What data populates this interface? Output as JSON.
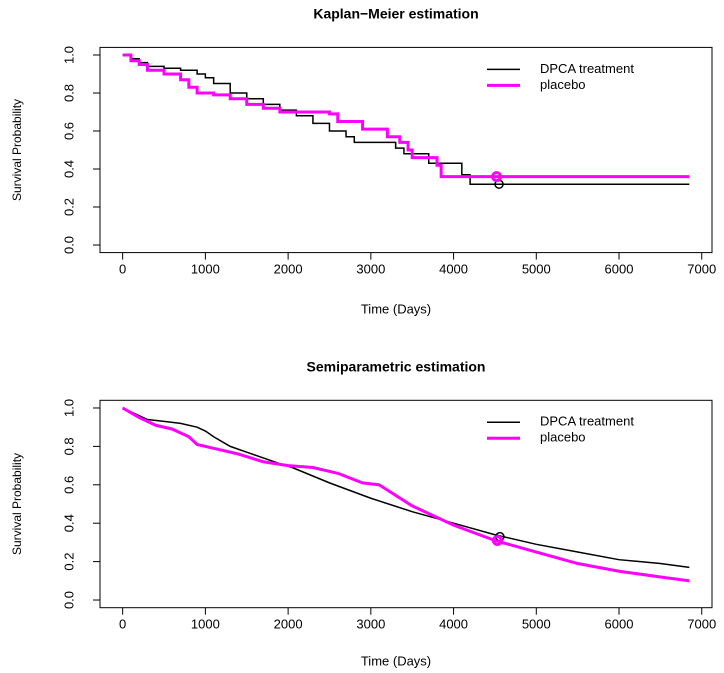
{
  "chart_data": [
    {
      "type": "line",
      "step": true,
      "title": "Kaplan−Meier estimation",
      "xlabel": "Time (Days)",
      "ylabel": "Survival Probability",
      "xlim": [
        -274,
        7124
      ],
      "ylim": [
        -0.04,
        1.04
      ],
      "xticks": [
        0,
        1000,
        2000,
        3000,
        4000,
        5000,
        6000,
        7000
      ],
      "yticks": [
        {
          "value": 0,
          "label": "0.0"
        },
        0.2,
        0.4,
        0.6,
        0.8,
        {
          "value": 1,
          "label": "1.0"
        }
      ],
      "legend": "topright",
      "series": [
        {
          "name": "DPCA treatment",
          "color": "#000000",
          "line_width": 1.5,
          "x": [
            0,
            100,
            200,
            300,
            500,
            700,
            900,
            1000,
            1100,
            1300,
            1500,
            1700,
            1900,
            2100,
            2300,
            2500,
            2700,
            2800,
            3100,
            3300,
            3400,
            3700,
            4100,
            4200,
            6850
          ],
          "values": [
            1.0,
            0.98,
            0.96,
            0.94,
            0.93,
            0.92,
            0.9,
            0.88,
            0.85,
            0.8,
            0.77,
            0.74,
            0.71,
            0.68,
            0.64,
            0.6,
            0.57,
            0.54,
            0.54,
            0.51,
            0.48,
            0.43,
            0.37,
            0.32,
            0.32
          ],
          "censored": {
            "x": 4550,
            "value": 0.32
          }
        },
        {
          "name": "placebo",
          "color": "#ff00ff",
          "line_width": 3,
          "x": [
            0,
            100,
            200,
            300,
            500,
            700,
            800,
            900,
            1100,
            1300,
            1500,
            1700,
            1900,
            2200,
            2500,
            2600,
            2800,
            2900,
            3100,
            3200,
            3350,
            3450,
            3500,
            3800,
            3850,
            6850
          ],
          "values": [
            1.0,
            0.97,
            0.95,
            0.92,
            0.9,
            0.87,
            0.83,
            0.8,
            0.79,
            0.77,
            0.74,
            0.72,
            0.7,
            0.7,
            0.69,
            0.65,
            0.65,
            0.61,
            0.61,
            0.57,
            0.54,
            0.5,
            0.46,
            0.42,
            0.36,
            0.36
          ],
          "censored": {
            "x": 4520,
            "value": 0.36
          }
        }
      ]
    },
    {
      "type": "line",
      "step": false,
      "title": "Semiparametric estimation",
      "xlabel": "Time (Days)",
      "ylabel": "Survival Probability",
      "xlim": [
        -274,
        7124
      ],
      "ylim": [
        -0.04,
        1.04
      ],
      "xticks": [
        0,
        1000,
        2000,
        3000,
        4000,
        5000,
        6000,
        7000
      ],
      "yticks": [
        {
          "value": 0,
          "label": "0.0"
        },
        0.2,
        0.4,
        0.6,
        0.8,
        {
          "value": 1,
          "label": "1.0"
        }
      ],
      "legend": "topright",
      "series": [
        {
          "name": "DPCA treatment",
          "color": "#000000",
          "line_width": 1.5,
          "x": [
            0,
            100,
            200,
            300,
            500,
            700,
            900,
            1000,
            1100,
            1300,
            1500,
            1700,
            1900,
            2050,
            2500,
            3000,
            3500,
            4000,
            4500,
            5000,
            5500,
            6000,
            6500,
            6850
          ],
          "values": [
            1.0,
            0.98,
            0.96,
            0.94,
            0.93,
            0.92,
            0.9,
            0.88,
            0.85,
            0.8,
            0.77,
            0.74,
            0.71,
            0.69,
            0.61,
            0.53,
            0.46,
            0.4,
            0.34,
            0.29,
            0.25,
            0.21,
            0.19,
            0.17
          ],
          "censored": {
            "x": 4560,
            "value": 0.33
          }
        },
        {
          "name": "placebo",
          "color": "#ff00ff",
          "line_width": 3,
          "x": [
            0,
            200,
            400,
            600,
            800,
            900,
            1100,
            1400,
            1700,
            2000,
            2300,
            2600,
            2900,
            3100,
            3500,
            4000,
            4500,
            5000,
            5500,
            6000,
            6500,
            6850
          ],
          "values": [
            1.0,
            0.95,
            0.91,
            0.89,
            0.85,
            0.81,
            0.79,
            0.76,
            0.72,
            0.7,
            0.69,
            0.66,
            0.61,
            0.6,
            0.49,
            0.39,
            0.31,
            0.25,
            0.19,
            0.15,
            0.12,
            0.1
          ],
          "censored": {
            "x": 4530,
            "value": 0.31
          }
        }
      ]
    }
  ]
}
